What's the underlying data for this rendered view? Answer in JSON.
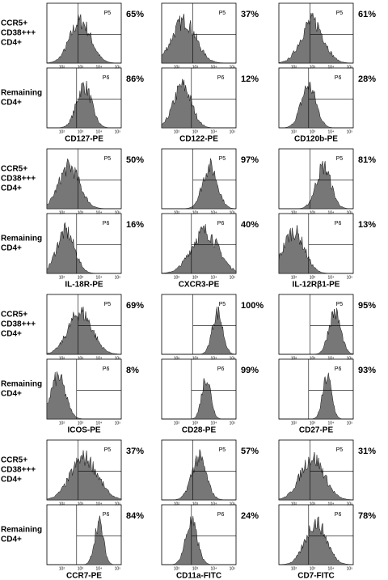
{
  "row_labels": {
    "top": [
      "CCR5+",
      "CD38+++",
      "CD4+"
    ],
    "bottom": [
      "Remaining",
      "CD4+"
    ]
  },
  "tick_labels": [
    "10²",
    "10³",
    "10⁴",
    "10⁵"
  ],
  "gates": {
    "top": "P5",
    "bottom": "P6"
  },
  "blocks": [
    {
      "panels": [
        {
          "marker": "CD127-PE",
          "top_percent": "65%",
          "bottom_percent": "86%"
        },
        {
          "marker": "CD122-PE",
          "top_percent": "37%",
          "bottom_percent": "12%"
        },
        {
          "marker": "CD120b-PE",
          "top_percent": "61%",
          "bottom_percent": "28%"
        }
      ]
    },
    {
      "panels": [
        {
          "marker": "IL-18R-PE",
          "top_percent": "50%",
          "bottom_percent": "16%"
        },
        {
          "marker": "CXCR3-PE",
          "top_percent": "97%",
          "bottom_percent": "40%"
        },
        {
          "marker": "IL-12Rβ1-PE",
          "top_percent": "81%",
          "bottom_percent": "13%"
        }
      ]
    },
    {
      "panels": [
        {
          "marker": "ICOS-PE",
          "top_percent": "69%",
          "bottom_percent": "8%"
        },
        {
          "marker": "CD28-PE",
          "top_percent": "100%",
          "bottom_percent": "99%"
        },
        {
          "marker": "CD27-PE",
          "top_percent": "95%",
          "bottom_percent": "93%"
        }
      ]
    },
    {
      "panels": [
        {
          "marker": "CCR7-PE",
          "top_percent": "37%",
          "bottom_percent": "84%"
        },
        {
          "marker": "CD11a-FITC",
          "top_percent": "57%",
          "bottom_percent": "24%"
        },
        {
          "marker": "CD7-FITC",
          "top_percent": "31%",
          "bottom_percent": "78%"
        }
      ]
    }
  ]
}
